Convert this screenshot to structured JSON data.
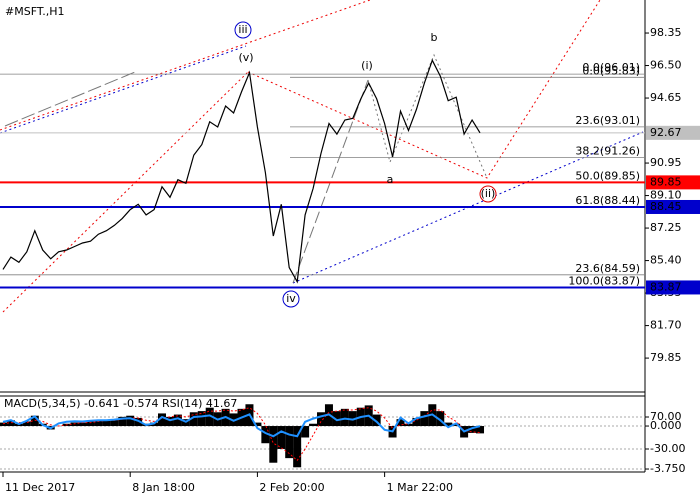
{
  "chart_data": {
    "type": "line",
    "title": "#MSFT.,H1",
    "color": "#000000",
    "values": [
      84.9,
      85.6,
      85.3,
      85.9,
      87.1,
      86.0,
      85.5,
      85.9,
      86.0,
      86.2,
      86.4,
      86.5,
      86.9,
      87.1,
      87.4,
      87.8,
      88.3,
      88.6,
      88.0,
      88.3,
      89.6,
      89.0,
      90.0,
      89.8,
      91.4,
      92.0,
      93.3,
      93.0,
      94.2,
      93.8,
      95.0,
      96.1,
      93.0,
      90.4,
      86.8,
      88.6,
      85.0,
      84.2,
      88.0,
      89.5,
      91.5,
      93.2,
      92.6,
      93.4,
      93.5,
      94.6,
      95.5,
      94.6,
      93.2,
      91.3,
      93.9,
      92.8,
      94.0,
      95.5,
      96.8,
      95.9,
      94.5,
      94.7,
      92.6,
      93.4,
      92.67
    ],
    "xlim": [
      -0.377,
      80.5
    ],
    "xticks": [
      {
        "value": 0,
        "label": "11 Dec 2017"
      },
      {
        "value": 16,
        "label": "8 Jan 18:00"
      },
      {
        "value": 32,
        "label": "2 Feb 20:00"
      },
      {
        "value": 48,
        "label": "1 Mar 22:00"
      }
    ],
    "ylim": [
      77.92,
      100.23
    ],
    "yticks": [
      98.35,
      {
        "value": 96.5,
        "label": "96.50"
      },
      94.65,
      90.95,
      {
        "value": 89.1,
        "label": "89.10"
      },
      87.25,
      {
        "value": 85.4,
        "label": "85.40"
      },
      83.55,
      {
        "value": 81.7,
        "label": "81.70"
      },
      79.85
    ],
    "price_levels": [
      {
        "value": 92.67,
        "color": "#c0c0c0"
      },
      {
        "value": 89.85,
        "color": "#ff0000"
      },
      {
        "value": 88.45,
        "color": "#0000cc"
      },
      {
        "value": 83.87,
        "color": "#0000cc"
      }
    ],
    "fib_sets": [
      {
        "levels": [
          {
            "value": 96.01,
            "label": "0.0(96.01)"
          },
          {
            "value": 84.59,
            "label": "23.6(84.59)"
          },
          {
            "value": 83.87,
            "label": "100.0(83.87)"
          }
        ]
      },
      {
        "levels": [
          {
            "value": 95.83,
            "label": "0.0(95.83)"
          },
          {
            "value": 93.01,
            "label": "23.6(93.01)"
          },
          {
            "value": 91.26,
            "label": "38.2(91.26)"
          },
          {
            "value": 89.85,
            "label": "50.0(89.85)"
          },
          {
            "value": 88.44,
            "label": "61.8(88.44)"
          }
        ]
      }
    ],
    "waves": [
      {
        "text": "iii",
        "color": "#0000cc",
        "circled": true
      },
      {
        "text": "(v)",
        "color": "#e00000",
        "circled": false
      },
      {
        "text": "(i)",
        "color": "#e00000",
        "circled": false
      },
      {
        "text": "b",
        "color": "#808080",
        "circled": false
      },
      {
        "text": "a",
        "color": "#808080",
        "circled": false
      },
      {
        "text": "(ii)",
        "color": "#e00000",
        "circled": true
      },
      {
        "text": "iv",
        "color": "#0000cc",
        "circled": true
      }
    ],
    "indicator": {
      "label": "MACD(5,34,5) -0.641 -0.574 RSI(14) 41.67",
      "macd_ylim": [
        -4.01,
        2.62
      ],
      "macd_ticks": [
        {
          "value": 0,
          "label": "0.000"
        },
        {
          "value": -3.75,
          "label": "-3.750"
        }
      ],
      "rsi_ylim": [
        -101.9,
        135.6
      ],
      "rsi_ticks": [
        {
          "value": 70,
          "label": "70.00"
        },
        {
          "value": -30,
          "label": "-30.00"
        }
      ],
      "series": [
        {
          "name": "MACD",
          "color": "#000000",
          "values": [
            0.3,
            0.5,
            0.2,
            0.4,
            0.9,
            0.2,
            -0.3,
            0.0,
            0.2,
            0.3,
            0.3,
            0.4,
            0.5,
            0.5,
            0.6,
            0.8,
            0.9,
            0.7,
            0.2,
            0.3,
            1.1,
            0.8,
            1.0,
            0.6,
            1.2,
            1.3,
            1.6,
            1.2,
            1.5,
            1.1,
            1.5,
            1.9,
            0.3,
            -1.5,
            -3.2,
            -2.0,
            -2.8,
            -3.6,
            -1.0,
            0.2,
            1.2,
            1.9,
            1.3,
            1.5,
            1.3,
            1.6,
            1.8,
            1.0,
            0.0,
            -1.0,
            0.6,
            0.2,
            0.7,
            1.3,
            1.9,
            1.3,
            0.3,
            0.2,
            -1.0,
            -0.6,
            -0.641
          ]
        },
        {
          "name": "Signal",
          "color": "#ff0000",
          "values": [
            0.2,
            0.3,
            0.3,
            0.3,
            0.5,
            0.4,
            0.1,
            0.0,
            0.1,
            0.2,
            0.3,
            0.3,
            0.4,
            0.5,
            0.5,
            0.6,
            0.7,
            0.7,
            0.5,
            0.4,
            0.7,
            0.8,
            0.9,
            0.8,
            1.0,
            1.1,
            1.3,
            1.3,
            1.4,
            1.3,
            1.4,
            1.6,
            1.1,
            0.1,
            -1.5,
            -1.9,
            -2.4,
            -3.0,
            -2.0,
            -0.8,
            0.4,
            1.2,
            1.3,
            1.4,
            1.4,
            1.5,
            1.6,
            1.3,
            0.7,
            -0.2,
            0.1,
            0.2,
            0.5,
            0.9,
            1.4,
            1.4,
            0.8,
            0.4,
            -0.4,
            -0.5,
            -0.574
          ]
        },
        {
          "name": "RSI",
          "color": "#1e90ff",
          "axis": "y2",
          "values": [
            55,
            60,
            48,
            58,
            72,
            45,
            35,
            50,
            55,
            57,
            56,
            58,
            60,
            60,
            62,
            65,
            66,
            58,
            45,
            50,
            70,
            60,
            66,
            55,
            70,
            72,
            75,
            62,
            70,
            58,
            68,
            78,
            35,
            20,
            10,
            25,
            15,
            10,
            55,
            65,
            72,
            78,
            60,
            65,
            62,
            70,
            74,
            55,
            30,
            25,
            68,
            50,
            66,
            72,
            78,
            60,
            38,
            50,
            25,
            35,
            41.67
          ]
        }
      ]
    }
  }
}
